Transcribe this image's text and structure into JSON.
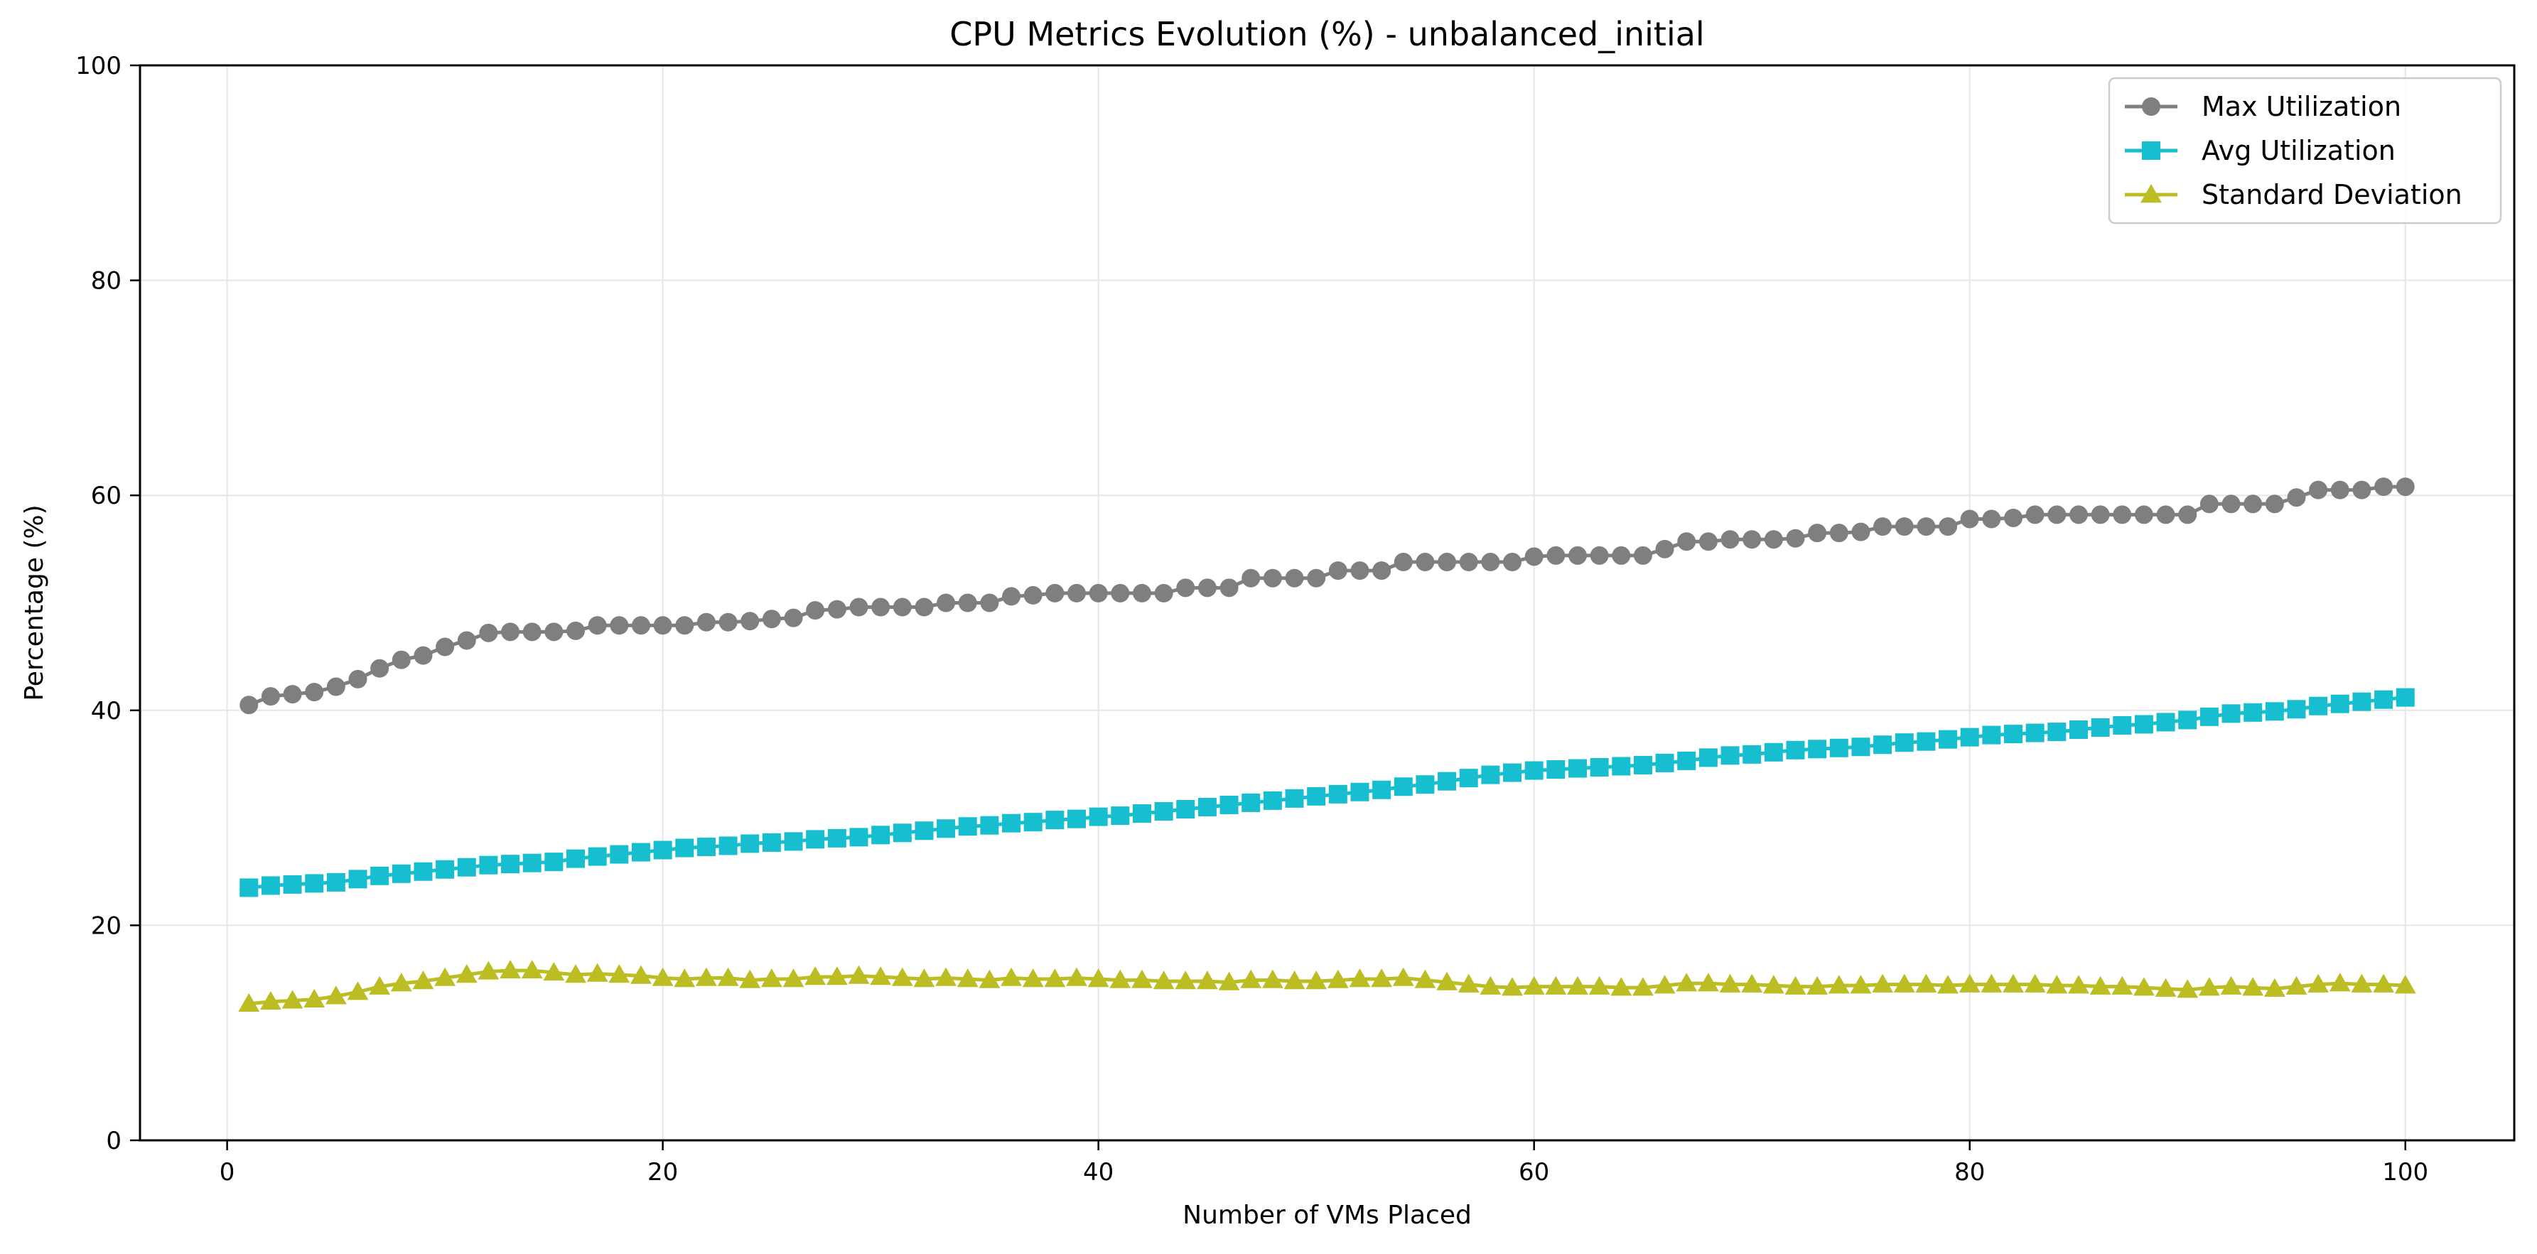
{
  "chart_data": {
    "type": "line",
    "title": "CPU Metrics Evolution (%) - unbalanced_initial",
    "xlabel": "Number of VMs Placed",
    "ylabel": "Percentage (%)",
    "xlim": [
      -4,
      105
    ],
    "ylim": [
      0,
      100
    ],
    "xticks": [
      0,
      20,
      40,
      60,
      80,
      100
    ],
    "yticks": [
      0,
      20,
      40,
      60,
      80,
      100
    ],
    "grid": true,
    "legend_position": "top-right",
    "x": [
      1,
      2,
      3,
      4,
      5,
      6,
      7,
      8,
      9,
      10,
      11,
      12,
      13,
      14,
      15,
      16,
      17,
      18,
      19,
      20,
      21,
      22,
      23,
      24,
      25,
      26,
      27,
      28,
      29,
      30,
      31,
      32,
      33,
      34,
      35,
      36,
      37,
      38,
      39,
      40,
      41,
      42,
      43,
      44,
      45,
      46,
      47,
      48,
      49,
      50,
      51,
      52,
      53,
      54,
      55,
      56,
      57,
      58,
      59,
      60,
      61,
      62,
      63,
      64,
      65,
      66,
      67,
      68,
      69,
      70,
      71,
      72,
      73,
      74,
      75,
      76,
      77,
      78,
      79,
      80,
      81,
      82,
      83,
      84,
      85,
      86,
      87,
      88,
      89,
      90,
      91,
      92,
      93,
      94,
      95,
      96,
      97,
      98,
      99,
      100
    ],
    "series": [
      {
        "name": "Max Utilization",
        "color": "#7f7f7f",
        "marker": "circle",
        "values": [
          40.5,
          41.3,
          41.5,
          41.7,
          42.2,
          42.9,
          43.9,
          44.7,
          45.1,
          45.9,
          46.5,
          47.2,
          47.3,
          47.3,
          47.3,
          47.4,
          47.9,
          47.9,
          47.9,
          47.9,
          47.9,
          48.2,
          48.2,
          48.3,
          48.5,
          48.6,
          49.3,
          49.4,
          49.6,
          49.6,
          49.6,
          49.6,
          50.0,
          50.0,
          50.0,
          50.6,
          50.7,
          50.9,
          50.9,
          50.9,
          50.9,
          50.9,
          50.9,
          51.4,
          51.4,
          51.4,
          52.3,
          52.3,
          52.3,
          52.3,
          53.0,
          53.0,
          53.0,
          53.8,
          53.8,
          53.8,
          53.8,
          53.8,
          53.8,
          54.3,
          54.4,
          54.4,
          54.4,
          54.4,
          54.4,
          55.0,
          55.7,
          55.7,
          55.9,
          55.9,
          55.9,
          56.0,
          56.5,
          56.5,
          56.6,
          57.1,
          57.1,
          57.1,
          57.1,
          57.8,
          57.8,
          57.9,
          58.2,
          58.2,
          58.2,
          58.2,
          58.2,
          58.2,
          58.2,
          58.2,
          59.2,
          59.2,
          59.2,
          59.2,
          59.8,
          60.5,
          60.5,
          60.5,
          60.8,
          60.8
        ]
      },
      {
        "name": "Avg Utilization",
        "color": "#17becf",
        "marker": "square",
        "values": [
          23.5,
          23.7,
          23.8,
          23.9,
          24.0,
          24.3,
          24.6,
          24.8,
          25.0,
          25.2,
          25.4,
          25.6,
          25.7,
          25.8,
          25.9,
          26.2,
          26.4,
          26.6,
          26.8,
          27.0,
          27.2,
          27.3,
          27.4,
          27.6,
          27.7,
          27.8,
          28.0,
          28.1,
          28.2,
          28.4,
          28.6,
          28.8,
          29.0,
          29.2,
          29.3,
          29.5,
          29.6,
          29.8,
          29.9,
          30.1,
          30.2,
          30.4,
          30.6,
          30.8,
          31.0,
          31.2,
          31.4,
          31.6,
          31.8,
          32.0,
          32.2,
          32.4,
          32.6,
          32.9,
          33.1,
          33.4,
          33.7,
          34.0,
          34.2,
          34.4,
          34.5,
          34.6,
          34.7,
          34.8,
          34.9,
          35.1,
          35.3,
          35.6,
          35.8,
          35.9,
          36.1,
          36.3,
          36.4,
          36.5,
          36.6,
          36.8,
          37.0,
          37.1,
          37.3,
          37.5,
          37.7,
          37.8,
          37.9,
          38.0,
          38.2,
          38.4,
          38.6,
          38.7,
          38.9,
          39.1,
          39.4,
          39.7,
          39.8,
          39.9,
          40.1,
          40.4,
          40.6,
          40.8,
          41.0,
          41.2
        ]
      },
      {
        "name": "Standard Deviation",
        "color": "#bcbd22",
        "marker": "triangle",
        "values": [
          12.7,
          12.9,
          13.0,
          13.1,
          13.4,
          13.8,
          14.3,
          14.6,
          14.8,
          15.1,
          15.4,
          15.7,
          15.8,
          15.8,
          15.6,
          15.4,
          15.5,
          15.4,
          15.3,
          15.1,
          15.0,
          15.1,
          15.1,
          14.9,
          15.0,
          15.0,
          15.2,
          15.2,
          15.3,
          15.2,
          15.1,
          15.0,
          15.1,
          15.0,
          14.9,
          15.1,
          15.0,
          15.0,
          15.1,
          15.0,
          14.9,
          14.9,
          14.8,
          14.8,
          14.8,
          14.7,
          14.9,
          14.9,
          14.8,
          14.8,
          14.9,
          15.0,
          15.0,
          15.1,
          14.9,
          14.7,
          14.5,
          14.3,
          14.2,
          14.3,
          14.3,
          14.3,
          14.3,
          14.2,
          14.2,
          14.4,
          14.6,
          14.6,
          14.5,
          14.5,
          14.4,
          14.3,
          14.3,
          14.4,
          14.4,
          14.5,
          14.5,
          14.5,
          14.4,
          14.5,
          14.5,
          14.5,
          14.5,
          14.4,
          14.4,
          14.3,
          14.3,
          14.2,
          14.1,
          14.0,
          14.2,
          14.3,
          14.2,
          14.1,
          14.3,
          14.5,
          14.6,
          14.5,
          14.5,
          14.4
        ]
      }
    ]
  }
}
